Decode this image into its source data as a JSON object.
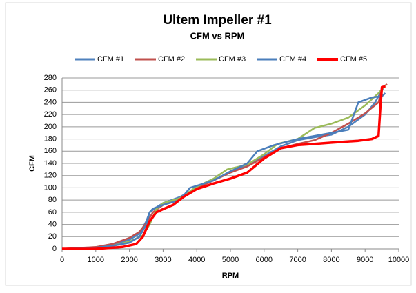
{
  "chart_data": {
    "type": "line",
    "title": "Ultem Impeller #1",
    "subtitle": "CFM vs RPM",
    "x_label": "RPM",
    "y_label": "CFM",
    "xlim": [
      0,
      10000
    ],
    "xticks": [
      0,
      1000,
      2000,
      3000,
      4000,
      5000,
      6000,
      7000,
      8000,
      9000,
      10000
    ],
    "ylim": [
      0,
      280
    ],
    "yticks": [
      0,
      20,
      40,
      60,
      80,
      100,
      120,
      140,
      160,
      180,
      200,
      220,
      240,
      260,
      280
    ],
    "grid": true,
    "legend": "top",
    "series": [
      {
        "name": "CFM #1",
        "color": "#4f81bd",
        "x": [
          0,
          1000,
          1500,
          2000,
          2300,
          2500,
          2600,
          2800,
          3000,
          3500,
          4000,
          4500,
          5000,
          5500,
          6000,
          6500,
          7000,
          7500,
          8000,
          8500,
          9000,
          9300,
          9500,
          9600
        ],
        "values": [
          0,
          2,
          6,
          15,
          25,
          45,
          60,
          68,
          75,
          85,
          100,
          113,
          125,
          137,
          152,
          168,
          178,
          183,
          187,
          200,
          220,
          240,
          260,
          268
        ]
      },
      {
        "name": "CFM #2",
        "color": "#c0504d",
        "x": [
          0,
          1000,
          1500,
          2000,
          2300,
          2500,
          2700,
          3000,
          3500,
          4000,
          4500,
          5000,
          5500,
          6000,
          6500,
          7000,
          7500,
          8000,
          8500,
          9000,
          9400,
          9500,
          9650
        ],
        "values": [
          0,
          3,
          8,
          18,
          28,
          42,
          60,
          72,
          82,
          100,
          112,
          125,
          135,
          150,
          165,
          172,
          178,
          190,
          205,
          222,
          240,
          262,
          270
        ]
      },
      {
        "name": "CFM #3",
        "color": "#9bbb59",
        "x": [
          0,
          1000,
          1500,
          2000,
          2400,
          2600,
          2800,
          3000,
          3500,
          4000,
          4500,
          4900,
          5500,
          6000,
          6400,
          7000,
          7500,
          8000,
          8500,
          9000,
          9400,
          9600
        ],
        "values": [
          0,
          1,
          5,
          12,
          22,
          40,
          65,
          75,
          83,
          102,
          115,
          130,
          138,
          155,
          172,
          180,
          198,
          205,
          215,
          235,
          255,
          268
        ]
      },
      {
        "name": "CFM #4",
        "color": "#4a7ebb",
        "x": [
          0,
          1000,
          1500,
          2000,
          2300,
          2500,
          2600,
          2700,
          3000,
          3500,
          3800,
          4500,
          5000,
          5500,
          5800,
          6300,
          7000,
          7500,
          8000,
          8500,
          8800,
          9200,
          9500,
          9600
        ],
        "values": [
          0,
          2,
          5,
          10,
          20,
          40,
          60,
          66,
          72,
          80,
          100,
          112,
          127,
          140,
          160,
          170,
          180,
          185,
          190,
          195,
          240,
          248,
          250,
          255
        ]
      },
      {
        "name": "CFM #5",
        "color": "#ff0000",
        "x": [
          0,
          1000,
          1800,
          2200,
          2400,
          2600,
          2800,
          3000,
          3300,
          3600,
          4000,
          4500,
          5000,
          5500,
          6000,
          6500,
          7000,
          7500,
          8000,
          8800,
          9200,
          9400,
          9450,
          9500,
          9600
        ],
        "values": [
          0,
          0,
          3,
          8,
          20,
          45,
          60,
          65,
          72,
          85,
          98,
          107,
          115,
          125,
          148,
          165,
          170,
          172,
          174,
          177,
          180,
          185,
          230,
          265,
          266
        ]
      }
    ]
  }
}
